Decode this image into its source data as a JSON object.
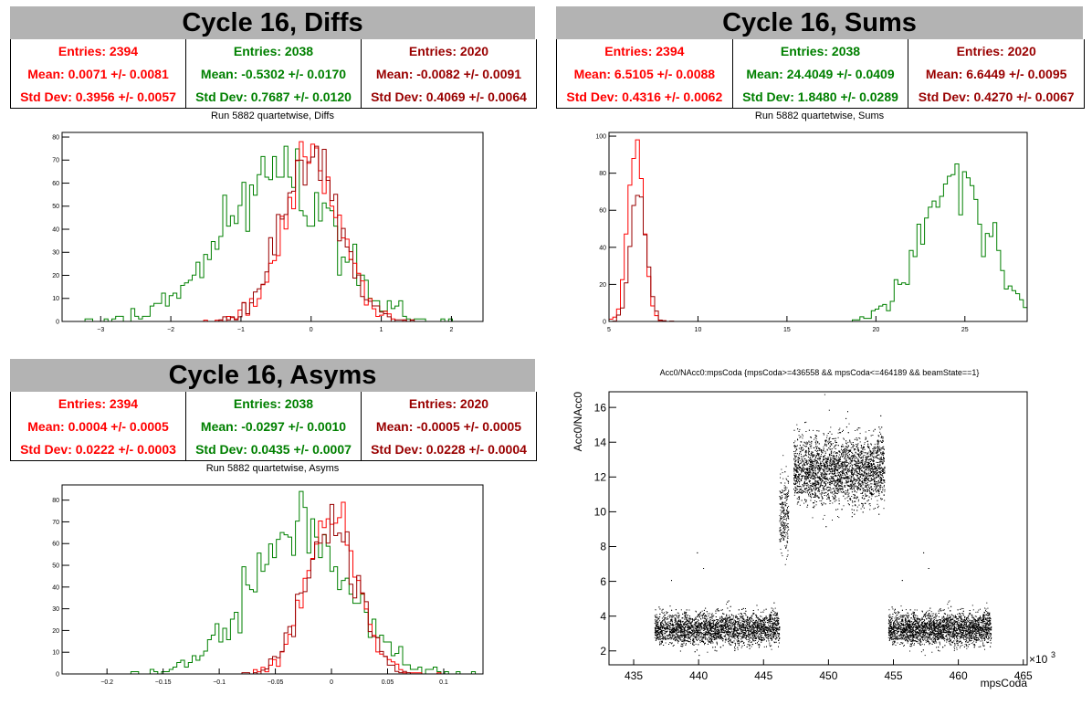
{
  "colors": {
    "red": "#ff0000",
    "green": "#008000",
    "darkred": "#990000",
    "title_bg": "#b3b3b3"
  },
  "panels": {
    "diffs": {
      "title": "Cycle 16, Diffs",
      "stats": [
        {
          "entries": "Entries: 2394",
          "mean": "Mean: 0.0071 +/- 0.0081",
          "std": "Std Dev: 0.3956 +/- 0.0057",
          "color": "#ff0000"
        },
        {
          "entries": "Entries: 2038",
          "mean": "Mean: -0.5302 +/- 0.0170",
          "std": "Std Dev: 0.7687 +/- 0.0120",
          "color": "#008000"
        },
        {
          "entries": "Entries: 2020",
          "mean": "Mean: -0.0082 +/- 0.0091",
          "std": "Std Dev: 0.4069 +/- 0.0064",
          "color": "#990000"
        }
      ],
      "subtitle": "Run 5882 quartetwise, Diffs"
    },
    "sums": {
      "title": "Cycle 16, Sums",
      "stats": [
        {
          "entries": "Entries: 2394",
          "mean": "Mean: 6.5105 +/- 0.0088",
          "std": "Std Dev: 0.4316 +/- 0.0062",
          "color": "#ff0000"
        },
        {
          "entries": "Entries: 2038",
          "mean": "Mean: 24.4049 +/- 0.0409",
          "std": "Std Dev: 1.8480 +/- 0.0289",
          "color": "#008000"
        },
        {
          "entries": "Entries: 2020",
          "mean": "Mean: 6.6449 +/- 0.0095",
          "std": "Std Dev: 0.4270 +/- 0.0067",
          "color": "#990000"
        }
      ],
      "subtitle": "Run 5882 quartetwise, Sums"
    },
    "asyms": {
      "title": "Cycle 16, Asyms",
      "stats": [
        {
          "entries": "Entries: 2394",
          "mean": "Mean: 0.0004 +/- 0.0005",
          "std": "Std Dev: 0.0222 +/- 0.0003",
          "color": "#ff0000"
        },
        {
          "entries": "Entries: 2038",
          "mean": "Mean: -0.0297 +/- 0.0010",
          "std": "Std Dev: 0.0435 +/- 0.0007",
          "color": "#008000"
        },
        {
          "entries": "Entries: 2020",
          "mean": "Mean: -0.0005 +/- 0.0005",
          "std": "Std Dev: 0.0228 +/- 0.0004",
          "color": "#990000"
        }
      ],
      "subtitle": "Run 5882 quartetwise, Asyms"
    },
    "scatter": {
      "title": "Acc0/NAcc0:mpsCoda {mpsCoda>=436558 && mpsCoda<=464189 && beamState==1}"
    }
  },
  "chart_data": [
    {
      "type": "histogram",
      "title": "Run 5882 quartetwise, Diffs",
      "xlim": [
        -3.55,
        2.45
      ],
      "ylim": [
        0,
        82
      ],
      "xticks": [
        -3,
        -2,
        -1,
        0,
        1,
        2
      ],
      "xtick_labels": [
        "−3",
        "−2",
        "−1",
        "0",
        "1",
        "2"
      ],
      "yticks": [
        0,
        10,
        20,
        30,
        40,
        50,
        60,
        70,
        80
      ],
      "series": [
        {
          "color": "#008000",
          "mean": -0.5302,
          "std": 0.7687,
          "entries": 2038,
          "peak": 76,
          "bins": 110
        },
        {
          "color": "#ff0000",
          "mean": 0.0071,
          "std": 0.3956,
          "entries": 2394,
          "peak": 78,
          "bins": 110
        },
        {
          "color": "#990000",
          "mean": -0.0082,
          "std": 0.4069,
          "entries": 2020,
          "peak": 76,
          "bins": 110
        }
      ]
    },
    {
      "type": "histogram",
      "title": "Run 5882 quartetwise, Sums",
      "xlim": [
        5,
        28.5
      ],
      "ylim": [
        0,
        102
      ],
      "xticks": [
        5,
        10,
        15,
        20,
        25
      ],
      "xtick_labels": [
        "5",
        "10",
        "15",
        "20",
        "25"
      ],
      "yticks": [
        0,
        20,
        40,
        60,
        80,
        100
      ],
      "series": [
        {
          "color": "#008000",
          "mean": 24.4049,
          "std": 1.848,
          "entries": 2038,
          "peak": 85,
          "bins": 110
        },
        {
          "color": "#ff0000",
          "mean": 6.5105,
          "std": 0.4316,
          "entries": 2394,
          "peak": 98,
          "bins": 110
        },
        {
          "color": "#990000",
          "mean": 6.6449,
          "std": 0.427,
          "entries": 2020,
          "peak": 68,
          "bins": 110
        }
      ]
    },
    {
      "type": "histogram",
      "title": "Run 5882 quartetwise, Asyms",
      "xlim": [
        -0.24,
        0.135
      ],
      "ylim": [
        0,
        87
      ],
      "xticks": [
        -0.2,
        -0.15,
        -0.1,
        -0.05,
        0,
        0.05,
        0.1
      ],
      "xtick_labels": [
        "−0.2",
        "−0.15",
        "−0.1",
        "−0.05",
        "0",
        "0.05",
        "0.1"
      ],
      "yticks": [
        0,
        10,
        20,
        30,
        40,
        50,
        60,
        70,
        80
      ],
      "series": [
        {
          "color": "#008000",
          "mean": -0.0297,
          "std": 0.0435,
          "entries": 2038,
          "peak": 84,
          "bins": 110
        },
        {
          "color": "#ff0000",
          "mean": 0.0004,
          "std": 0.0222,
          "entries": 2394,
          "peak": 79,
          "bins": 110
        },
        {
          "color": "#990000",
          "mean": -0.0005,
          "std": 0.0228,
          "entries": 2020,
          "peak": 78,
          "bins": 110
        }
      ]
    },
    {
      "type": "scatter",
      "title": "Acc0/NAcc0:mpsCoda {mpsCoda>=436558 && mpsCoda<=464189 && beamState==1}",
      "xlabel": "mpsCoda",
      "ylabel": "Acc0/NAcc0",
      "x_multiplier_label": "×10",
      "x_multiplier_exp": "3",
      "xlim": [
        433.1,
        465.3
      ],
      "ylim": [
        1.2,
        16.9
      ],
      "xticks": [
        435,
        440,
        445,
        450,
        455,
        460,
        465
      ],
      "xtick_labels": [
        "435",
        "440",
        "445",
        "450",
        "455",
        "460",
        "465"
      ],
      "yticks": [
        2,
        4,
        6,
        8,
        10,
        12,
        14,
        16
      ],
      "ytick_labels": [
        "2",
        "4",
        "6",
        "8",
        "10",
        "12",
        "14",
        "16"
      ],
      "clusters": [
        {
          "x_range": [
            436.6,
            446.2
          ],
          "y_center": 3.3,
          "y_spread": 0.45,
          "points": 4200
        },
        {
          "x_range": [
            446.2,
            446.9
          ],
          "y_center": 9.8,
          "y_spread": 1.1,
          "points": 260
        },
        {
          "x_range": [
            447.3,
            454.3
          ],
          "y_center": 12.4,
          "y_spread": 0.95,
          "points": 4200
        },
        {
          "x_range": [
            454.6,
            462.5
          ],
          "y_center": 3.3,
          "y_spread": 0.45,
          "points": 3600
        }
      ]
    }
  ]
}
